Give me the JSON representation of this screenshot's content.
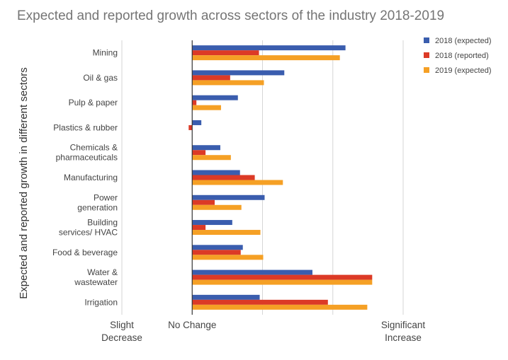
{
  "chart_data": {
    "type": "bar",
    "orientation": "horizontal",
    "title": "Expected and reported growth across sectors of the industry 2018-2019",
    "ylabel": "Expected and reported growth in different sectors",
    "xlabel": "",
    "xlim": [
      -1,
      3
    ],
    "x_ticks": [
      {
        "value": -1,
        "lines": [
          "Slight",
          "Decrease"
        ]
      },
      {
        "value": 0,
        "lines": [
          "No Change"
        ]
      },
      {
        "value": 1,
        "lines": [
          ""
        ]
      },
      {
        "value": 2,
        "lines": [
          ""
        ]
      },
      {
        "value": 3,
        "lines": [
          "Significant",
          "Increase"
        ]
      }
    ],
    "grid": true,
    "legend_position": "top-right",
    "categories": [
      [
        "Mining"
      ],
      [
        "Oil & gas"
      ],
      [
        "Pulp & paper"
      ],
      [
        "Plastics & rubber"
      ],
      [
        "Chemicals &",
        "pharmaceuticals"
      ],
      [
        "Manufacturing"
      ],
      [
        "Power",
        "generation"
      ],
      [
        "Building",
        "services/ HVAC"
      ],
      [
        "Food & beverage"
      ],
      [
        "Water &",
        "wastewater"
      ],
      [
        "Irrigation"
      ]
    ],
    "series": [
      {
        "name": "2018 (expected)",
        "color": "#3a5dae",
        "values": [
          2.18,
          1.31,
          0.65,
          0.13,
          0.4,
          0.68,
          1.03,
          0.57,
          0.72,
          1.71,
          0.96
        ]
      },
      {
        "name": "2018 (reported)",
        "color": "#dc3a26",
        "values": [
          0.95,
          0.54,
          0.06,
          -0.05,
          0.19,
          0.89,
          0.32,
          0.19,
          0.69,
          2.56,
          1.93
        ]
      },
      {
        "name": "2019 (expected)",
        "color": "#f5a025",
        "values": [
          2.1,
          1.02,
          0.41,
          0.0,
          0.55,
          1.29,
          0.7,
          0.97,
          1.01,
          2.56,
          2.49
        ]
      }
    ]
  }
}
